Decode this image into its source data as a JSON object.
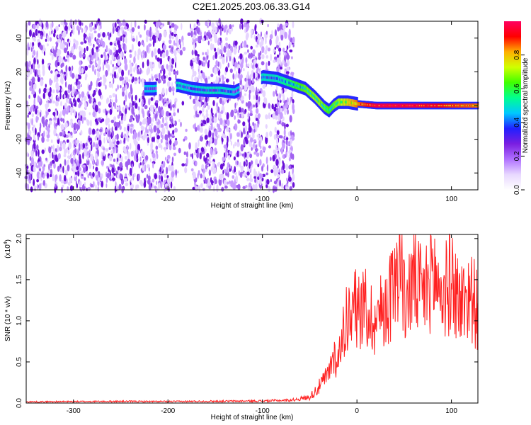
{
  "title": "C2E1.2025.203.06.33.G14",
  "colorbar": {
    "label": "Normalized spectral amplitude",
    "ticks": [
      0.0,
      0.2,
      0.4,
      0.6,
      0.8
    ],
    "tick_labels": [
      "0.0",
      "0.2",
      "0.4",
      "0.6",
      "0.8"
    ],
    "range": [
      0,
      1
    ],
    "colormap": [
      "#ffffff",
      "#e8d8ff",
      "#b070ff",
      "#7a1ee0",
      "#2020ff",
      "#00c8ff",
      "#00ff90",
      "#40ff00",
      "#d0ff00",
      "#ffb000",
      "#ff0000",
      "#ff0060"
    ]
  },
  "chart_data": [
    {
      "type": "heatmap",
      "xlabel": "Height of straight line (km)",
      "ylabel": "Frequency (Hz)",
      "xlim": [
        -350,
        128
      ],
      "ylim": [
        -50,
        50
      ],
      "xticks": [
        -300,
        -200,
        -100,
        0,
        100
      ],
      "xtick_labels": [
        "-300",
        "-200",
        "-100",
        "0",
        "100"
      ],
      "yticks": [
        -40,
        -20,
        0,
        20,
        40
      ],
      "ytick_labels": [
        "-40",
        "-20",
        "0",
        "20",
        "40"
      ],
      "noise_region_x": [
        -350,
        -67
      ],
      "noise_gaps_x": [
        [
          -190,
          -175
        ],
        [
          -95,
          -88
        ]
      ],
      "ridge": {
        "x": [
          -225,
          -215,
          -190,
          -175,
          -160,
          -145,
          -130,
          -100,
          -85,
          -70,
          -55,
          -45,
          -40,
          -35,
          -30,
          -25,
          -20,
          -10,
          0,
          20,
          60,
          100,
          128
        ],
        "y": [
          10,
          10,
          12,
          10,
          9,
          9,
          8,
          17,
          16,
          13,
          10,
          5,
          2,
          -1,
          -3,
          0,
          2,
          2,
          1,
          0,
          0,
          0,
          0
        ],
        "amplitude": [
          0.3,
          0.3,
          0.35,
          0.3,
          0.35,
          0.35,
          0.3,
          0.35,
          0.35,
          0.45,
          0.55,
          0.6,
          0.6,
          0.55,
          0.5,
          0.55,
          0.6,
          0.7,
          0.8,
          0.95,
          0.95,
          0.85,
          0.8
        ]
      }
    },
    {
      "type": "line",
      "xlabel": "Height of straight line (km)",
      "ylabel": "SNR (10 * v/v)",
      "scale_label": "(x10",
      "scale_exponent": "4",
      "scale_close": ")",
      "xlim": [
        -350,
        128
      ],
      "ylim": [
        0,
        20500
      ],
      "xticks": [
        -300,
        -200,
        -100,
        0,
        100
      ],
      "xtick_labels": [
        "-300",
        "-200",
        "-100",
        "0",
        "100"
      ],
      "yticks": [
        0,
        5000,
        10000,
        15000,
        20000
      ],
      "ytick_labels": [
        "0.0",
        "0.5",
        "1.0",
        "1.5",
        "2.0"
      ],
      "series": [
        {
          "color": "#ff2020",
          "x": [
            -350,
            -300,
            -250,
            -200,
            -150,
            -100,
            -70,
            -50,
            -40,
            -30,
            -25,
            -20,
            -15,
            -10,
            -5,
            0,
            10,
            20,
            30,
            40,
            45,
            50,
            60,
            70,
            80,
            90,
            100,
            110,
            120,
            128
          ],
          "y": [
            150,
            180,
            200,
            180,
            220,
            250,
            350,
            700,
            2000,
            3500,
            6000,
            5000,
            9000,
            11000,
            10000,
            12000,
            11000,
            10000,
            12000,
            14000,
            20000,
            12000,
            15000,
            13000,
            16000,
            13000,
            15000,
            12000,
            13500,
            11000
          ]
        }
      ]
    }
  ]
}
